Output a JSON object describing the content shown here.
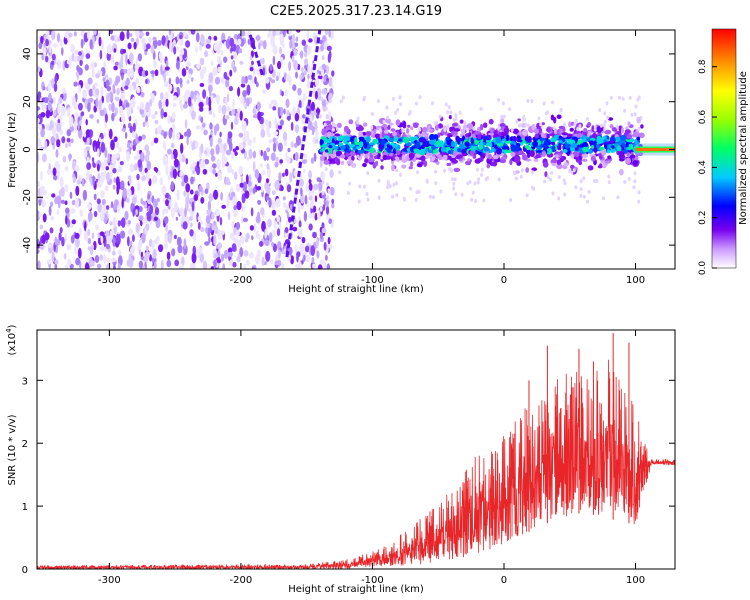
{
  "title": "C2E5.2025.317.23.14.G19",
  "colors": {
    "line": "#e8262a",
    "axis": "#000000",
    "purple": "#7a1cf0",
    "purple_light": "#d9c7ff",
    "purple_mid": "#a47bf5"
  },
  "chart_data": [
    {
      "type": "heatmap",
      "title": "C2E5.2025.317.23.14.G19",
      "xlabel": "Height of straight line (km)",
      "ylabel": "Frequency (Hz)",
      "xlim": [
        -355,
        130
      ],
      "ylim": [
        -50,
        50
      ],
      "xticks": [
        -300,
        -200,
        -100,
        0,
        100
      ],
      "yticks": [
        -40,
        -20,
        0,
        20,
        40
      ],
      "colorbar": {
        "label": "Normalized spectral amplitude",
        "range": [
          0,
          0.95
        ],
        "ticks": [
          0,
          0.2,
          0.4,
          0.6,
          0.8
        ],
        "tick_labels": [
          "0.0",
          "0.2",
          "0.4",
          "0.6",
          "0.8"
        ]
      },
      "regions": [
        {
          "name": "noise",
          "x_range": [
            -355,
            -140
          ],
          "freq_range": [
            -50,
            50
          ],
          "amplitude": 0.05
        },
        {
          "name": "signal-band",
          "x_range": [
            -140,
            105
          ],
          "freq_center": 2,
          "freq_halfwidth": 7,
          "amplitude": 0.25
        },
        {
          "name": "strong-tone",
          "x_range": [
            100,
            130
          ],
          "freq_center": 0,
          "amplitude": 0.85
        }
      ]
    },
    {
      "type": "line",
      "xlabel": "Height of straight line (km)",
      "ylabel": "SNR (10 * v/v)",
      "yscale_label": "(x10",
      "yscale_exp": "4",
      "yscale_close": ")",
      "xlim": [
        -355,
        130
      ],
      "ylim": [
        0,
        3.8
      ],
      "xticks": [
        -300,
        -200,
        -100,
        0,
        100
      ],
      "yticks": [
        0,
        1,
        2,
        3
      ],
      "envelope": {
        "x": [
          -355,
          -150,
          -120,
          -100,
          -80,
          -60,
          -40,
          -20,
          0,
          20,
          40,
          60,
          80,
          100,
          112,
          130
        ],
        "upper": [
          0.06,
          0.08,
          0.15,
          0.28,
          0.55,
          0.85,
          1.3,
          1.85,
          2.2,
          2.7,
          3.1,
          3.2,
          3.35,
          2.6,
          1.75,
          1.75
        ],
        "lower": [
          0.0,
          0.0,
          0.0,
          0.03,
          0.05,
          0.08,
          0.15,
          0.2,
          0.4,
          0.6,
          0.8,
          0.9,
          0.8,
          0.7,
          1.65,
          1.65
        ]
      },
      "peaks": [
        {
          "x": 33,
          "y": 3.55
        },
        {
          "x": 57,
          "y": 3.5
        },
        {
          "x": 83,
          "y": 3.75
        },
        {
          "x": 95,
          "y": 3.6
        },
        {
          "x": 19,
          "y": 3.0
        },
        {
          "x": 68,
          "y": 3.3
        }
      ]
    }
  ]
}
